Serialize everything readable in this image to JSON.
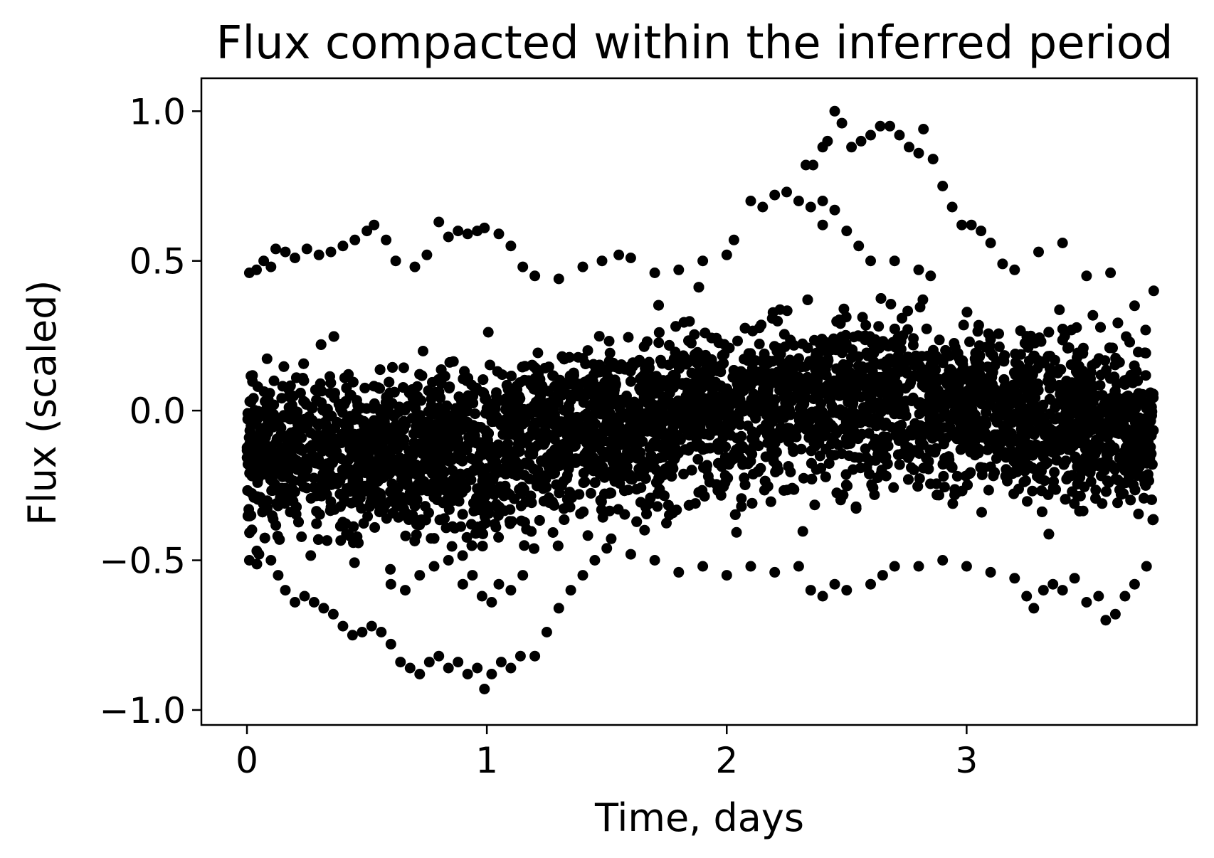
{
  "chart_data": {
    "type": "scatter",
    "title": "Flux compacted within the inferred period",
    "xlabel": "Time, days",
    "ylabel": "Flux (scaled)",
    "xlim": [
      -0.19,
      3.96
    ],
    "ylim": [
      -1.05,
      1.11
    ],
    "xticks": [
      0,
      1,
      2,
      3
    ],
    "xtick_labels": [
      "0",
      "1",
      "2",
      "3"
    ],
    "yticks": [
      1.0,
      0.5,
      0.0,
      -0.5,
      -1.0
    ],
    "ytick_labels": [
      "1.0",
      "0.5",
      "0.0",
      "−0.5",
      "−1.0"
    ],
    "grid": false,
    "legend": "none",
    "marker_color": "#000000",
    "series": [
      {
        "description_hidden": "",
        "points": [
          [
            0.01,
            0.46
          ],
          [
            0.04,
            0.47
          ],
          [
            0.07,
            0.5
          ],
          [
            0.1,
            0.48
          ],
          [
            0.12,
            0.54
          ],
          [
            0.16,
            0.53
          ],
          [
            0.2,
            0.51
          ],
          [
            0.25,
            0.54
          ],
          [
            0.3,
            0.52
          ],
          [
            0.35,
            0.53
          ],
          [
            0.4,
            0.55
          ],
          [
            0.45,
            0.57
          ],
          [
            0.5,
            0.6
          ],
          [
            0.53,
            0.62
          ],
          [
            0.58,
            0.57
          ],
          [
            0.62,
            0.5
          ],
          [
            0.7,
            0.48
          ],
          [
            0.75,
            0.52
          ],
          [
            0.8,
            0.63
          ],
          [
            0.84,
            0.58
          ],
          [
            0.88,
            0.6
          ],
          [
            0.92,
            0.59
          ],
          [
            0.96,
            0.6
          ],
          [
            0.99,
            0.61
          ],
          [
            1.05,
            0.59
          ],
          [
            1.1,
            0.55
          ],
          [
            1.15,
            0.48
          ],
          [
            1.2,
            0.45
          ],
          [
            1.3,
            0.44
          ],
          [
            1.4,
            0.48
          ],
          [
            1.48,
            0.5
          ],
          [
            1.55,
            0.52
          ],
          [
            1.6,
            0.51
          ],
          [
            1.7,
            0.46
          ],
          [
            1.8,
            0.47
          ],
          [
            1.9,
            0.5
          ],
          [
            2.0,
            0.52
          ],
          [
            2.03,
            0.57
          ],
          [
            2.1,
            0.7
          ],
          [
            2.15,
            0.68
          ],
          [
            2.2,
            0.72
          ],
          [
            2.25,
            0.73
          ],
          [
            2.3,
            0.7
          ],
          [
            2.33,
            0.82
          ],
          [
            2.36,
            0.82
          ],
          [
            2.4,
            0.88
          ],
          [
            2.42,
            0.9
          ],
          [
            2.45,
            1.0
          ],
          [
            2.48,
            0.96
          ],
          [
            2.52,
            0.88
          ],
          [
            2.56,
            0.9
          ],
          [
            2.6,
            0.92
          ],
          [
            2.64,
            0.95
          ],
          [
            2.68,
            0.95
          ],
          [
            2.72,
            0.92
          ],
          [
            2.76,
            0.88
          ],
          [
            2.8,
            0.86
          ],
          [
            2.82,
            0.94
          ],
          [
            2.86,
            0.84
          ],
          [
            2.9,
            0.75
          ],
          [
            2.94,
            0.68
          ],
          [
            2.98,
            0.62
          ],
          [
            3.02,
            0.62
          ],
          [
            3.06,
            0.6
          ],
          [
            3.1,
            0.56
          ],
          [
            3.15,
            0.49
          ],
          [
            3.2,
            0.47
          ],
          [
            3.3,
            0.53
          ],
          [
            3.4,
            0.56
          ],
          [
            3.5,
            0.45
          ],
          [
            3.6,
            0.46
          ],
          [
            3.7,
            0.35
          ],
          [
            3.78,
            0.4
          ],
          [
            2.4,
            0.7
          ],
          [
            2.45,
            0.67
          ],
          [
            2.5,
            0.6
          ],
          [
            2.55,
            0.55
          ],
          [
            2.6,
            0.5
          ],
          [
            2.7,
            0.5
          ],
          [
            2.8,
            0.47
          ],
          [
            2.85,
            0.45
          ],
          [
            2.4,
            0.62
          ],
          [
            2.35,
            0.68
          ],
          [
            0.01,
            -0.5
          ],
          [
            0.05,
            -0.48
          ],
          [
            0.1,
            -0.5
          ],
          [
            0.13,
            -0.55
          ],
          [
            0.16,
            -0.6
          ],
          [
            0.2,
            -0.64
          ],
          [
            0.24,
            -0.62
          ],
          [
            0.28,
            -0.64
          ],
          [
            0.32,
            -0.66
          ],
          [
            0.36,
            -0.68
          ],
          [
            0.4,
            -0.72
          ],
          [
            0.44,
            -0.75
          ],
          [
            0.48,
            -0.74
          ],
          [
            0.52,
            -0.72
          ],
          [
            0.56,
            -0.74
          ],
          [
            0.6,
            -0.78
          ],
          [
            0.64,
            -0.84
          ],
          [
            0.68,
            -0.86
          ],
          [
            0.72,
            -0.88
          ],
          [
            0.76,
            -0.84
          ],
          [
            0.8,
            -0.82
          ],
          [
            0.84,
            -0.86
          ],
          [
            0.88,
            -0.84
          ],
          [
            0.92,
            -0.88
          ],
          [
            0.96,
            -0.86
          ],
          [
            0.99,
            -0.93
          ],
          [
            1.02,
            -0.88
          ],
          [
            1.06,
            -0.84
          ],
          [
            1.1,
            -0.86
          ],
          [
            1.14,
            -0.82
          ],
          [
            1.2,
            -0.82
          ],
          [
            1.25,
            -0.74
          ],
          [
            1.3,
            -0.66
          ],
          [
            1.35,
            -0.6
          ],
          [
            1.4,
            -0.55
          ],
          [
            1.45,
            -0.5
          ],
          [
            1.5,
            -0.46
          ],
          [
            0.6,
            -0.58
          ],
          [
            0.66,
            -0.6
          ],
          [
            0.72,
            -0.55
          ],
          [
            0.78,
            -0.52
          ],
          [
            0.84,
            -0.5
          ],
          [
            0.9,
            -0.58
          ],
          [
            0.94,
            -0.55
          ],
          [
            0.98,
            -0.62
          ],
          [
            1.02,
            -0.64
          ],
          [
            1.05,
            -0.58
          ],
          [
            1.1,
            -0.6
          ],
          [
            1.15,
            -0.55
          ],
          [
            1.6,
            -0.48
          ],
          [
            1.7,
            -0.5
          ],
          [
            1.8,
            -0.54
          ],
          [
            1.9,
            -0.52
          ],
          [
            2.0,
            -0.55
          ],
          [
            2.1,
            -0.52
          ],
          [
            2.2,
            -0.54
          ],
          [
            2.3,
            -0.52
          ],
          [
            2.35,
            -0.6
          ],
          [
            2.4,
            -0.62
          ],
          [
            2.45,
            -0.58
          ],
          [
            2.5,
            -0.6
          ],
          [
            2.6,
            -0.58
          ],
          [
            2.65,
            -0.55
          ],
          [
            2.7,
            -0.52
          ],
          [
            2.8,
            -0.52
          ],
          [
            2.9,
            -0.5
          ],
          [
            3.0,
            -0.52
          ],
          [
            3.1,
            -0.54
          ],
          [
            3.2,
            -0.56
          ],
          [
            3.25,
            -0.62
          ],
          [
            3.28,
            -0.66
          ],
          [
            3.32,
            -0.6
          ],
          [
            3.36,
            -0.58
          ],
          [
            3.4,
            -0.6
          ],
          [
            3.45,
            -0.56
          ],
          [
            3.5,
            -0.64
          ],
          [
            3.55,
            -0.62
          ],
          [
            3.58,
            -0.7
          ],
          [
            3.62,
            -0.68
          ],
          [
            3.66,
            -0.62
          ],
          [
            3.7,
            -0.58
          ],
          [
            3.75,
            -0.52
          ]
        ]
      }
    ]
  }
}
